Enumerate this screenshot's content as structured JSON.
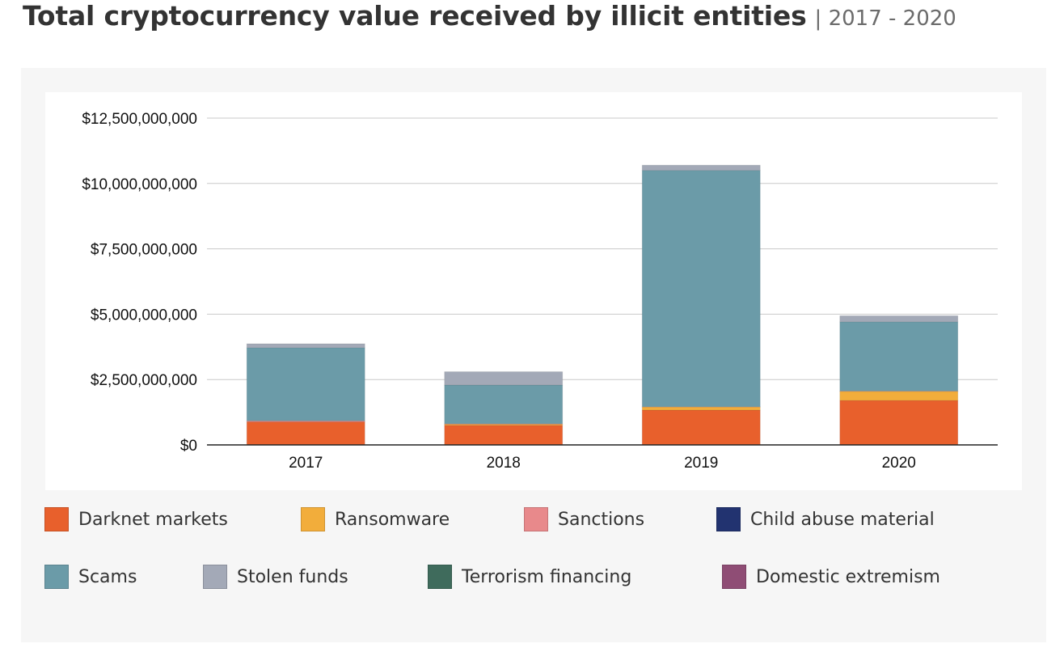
{
  "title": {
    "main": "Total cryptocurrency value received by illicit entities",
    "sub": "| 2017 - 2020"
  },
  "chart_data": {
    "type": "bar",
    "stacked": true,
    "categories": [
      "2017",
      "2018",
      "2019",
      "2020"
    ],
    "series": [
      {
        "name": "Darknet markets",
        "color": "#e8602c",
        "values": [
          880000000,
          750000000,
          1330000000,
          1700000000
        ]
      },
      {
        "name": "Ransomware",
        "color": "#f2ad3b",
        "values": [
          0,
          40000000,
          120000000,
          350000000
        ]
      },
      {
        "name": "Sanctions",
        "color": "#e8898b",
        "values": [
          40000000,
          20000000,
          10000000,
          10000000
        ]
      },
      {
        "name": "Child abuse material",
        "color": "#223370",
        "values": [
          0,
          0,
          0,
          0
        ]
      },
      {
        "name": "Scams",
        "color": "#6b9ba8",
        "values": [
          2800000000,
          1480000000,
          9040000000,
          2650000000
        ]
      },
      {
        "name": "Stolen funds",
        "color": "#a3a9b7",
        "values": [
          150000000,
          510000000,
          200000000,
          230000000
        ]
      },
      {
        "name": "Terrorism financing",
        "color": "#3f6b5c",
        "values": [
          0,
          0,
          0,
          0
        ]
      },
      {
        "name": "Domestic extremism",
        "color": "#8f4d75",
        "values": [
          0,
          0,
          0,
          0
        ]
      }
    ],
    "y_ticks": [
      "$0",
      "$2,500,000,000",
      "$5,000,000,000",
      "$7,500,000,000",
      "$10,000,000,000",
      "$12,500,000,000"
    ],
    "ylim": [
      0,
      12500000000
    ],
    "grid": true,
    "legend_position": "bottom"
  }
}
